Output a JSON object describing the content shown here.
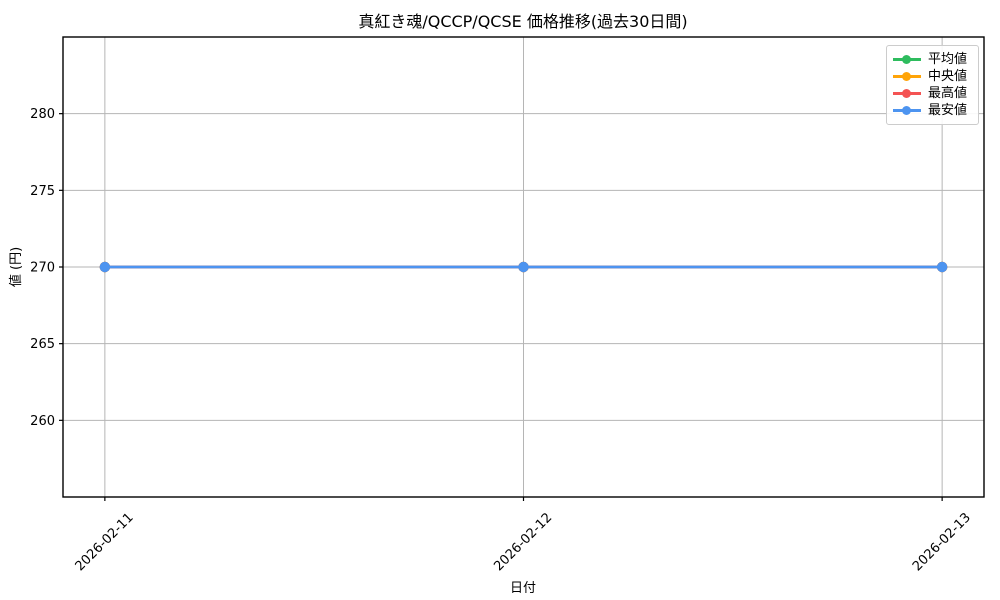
{
  "chart_data": {
    "type": "line",
    "title": "真紅き魂/QCCP/QCSE 価格推移(過去30日間)",
    "xlabel": "日付",
    "ylabel": "値 (円)",
    "categories": [
      "2026-02-11",
      "2026-02-12",
      "2026-02-13"
    ],
    "series": [
      {
        "name": "平均値",
        "color": "#2ebc5e",
        "values": [
          270,
          270,
          270
        ]
      },
      {
        "name": "中央値",
        "color": "#ffa408",
        "values": [
          270,
          270,
          270
        ]
      },
      {
        "name": "最高値",
        "color": "#f45353",
        "values": [
          270,
          270,
          270
        ]
      },
      {
        "name": "最安値",
        "color": "#4d94f0",
        "values": [
          270,
          270,
          270
        ]
      }
    ],
    "ylim": [
      255,
      285
    ],
    "yticks": [
      260,
      265,
      270,
      275,
      280
    ],
    "grid": true,
    "legend_position": "upper right",
    "colors": {
      "grid": "#b5b5b5",
      "spine": "#000000",
      "background": "#ffffff"
    }
  }
}
